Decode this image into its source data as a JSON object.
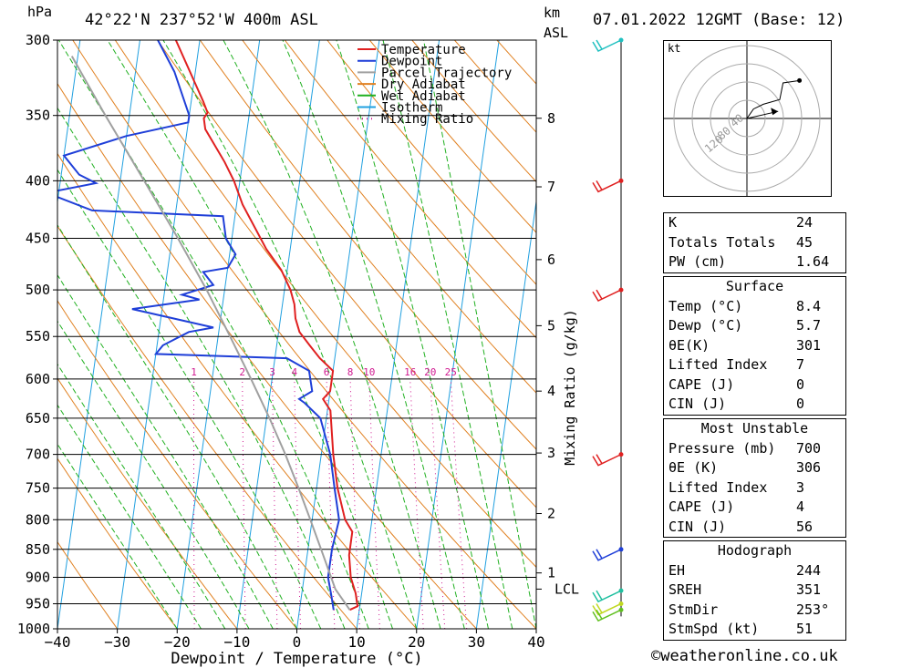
{
  "header": {
    "location": "42°22'N 237°52'W 400m ASL",
    "hpa_unit": "hPa",
    "km_unit": "km",
    "asl": "ASL",
    "datetime": "07.01.2022 12GMT (Base: 12)"
  },
  "chart_data": {
    "type": "line",
    "title": "42°22'N 237°52'W 400m ASL",
    "xlabel": "Dewpoint / Temperature (°C)",
    "ylabel": "hPa",
    "x_ticks": [
      -40,
      -30,
      -20,
      -10,
      0,
      10,
      20,
      30,
      40
    ],
    "xlim": [
      -40,
      40
    ],
    "ylim": [
      1000,
      300
    ],
    "y_scale": "log",
    "pressure_levels": [
      300,
      350,
      400,
      450,
      500,
      550,
      600,
      650,
      700,
      750,
      800,
      850,
      900,
      950,
      1000
    ],
    "km_ticks": [
      {
        "label": "8",
        "p": 352
      },
      {
        "label": "7",
        "p": 405
      },
      {
        "label": "6",
        "p": 470
      },
      {
        "label": "5",
        "p": 538
      },
      {
        "label": "4",
        "p": 615
      },
      {
        "label": "3",
        "p": 698
      },
      {
        "label": "2",
        "p": 790
      },
      {
        "label": "1",
        "p": 892
      },
      {
        "label": "LCL",
        "p": 922
      }
    ],
    "mixing_ratio_axis_label": "Mixing Ratio (g/kg)",
    "mixing_ratio_labels": [
      "1",
      "2",
      "3",
      "4",
      "6",
      "8",
      "10",
      "16",
      "20",
      "25"
    ],
    "legend": {
      "placement": "top-right",
      "entries": [
        {
          "name": "Temperature",
          "color": "#e02020"
        },
        {
          "name": "Dewpoint",
          "color": "#1f3fd8"
        },
        {
          "name": "Parcel Trajectory",
          "color": "#a0a0a0"
        },
        {
          "name": "Dry Adiabat",
          "color": "#e08020"
        },
        {
          "name": "Wet Adiabat",
          "color": "#20b020"
        },
        {
          "name": "Isotherm",
          "color": "#20a0e0"
        },
        {
          "name": "Mixing Ratio",
          "color": "#d01890"
        }
      ]
    },
    "series": [
      {
        "name": "Temperature",
        "color": "#e02020",
        "points": [
          {
            "p": 300,
            "t": -34
          },
          {
            "p": 340,
            "t": -28
          },
          {
            "p": 348,
            "t": -27
          },
          {
            "p": 352,
            "t": -27.5
          },
          {
            "p": 360,
            "t": -27
          },
          {
            "p": 385,
            "t": -23
          },
          {
            "p": 400,
            "t": -21
          },
          {
            "p": 420,
            "t": -19
          },
          {
            "p": 460,
            "t": -14
          },
          {
            "p": 480,
            "t": -11
          },
          {
            "p": 500,
            "t": -9
          },
          {
            "p": 515,
            "t": -8
          },
          {
            "p": 530,
            "t": -7.5
          },
          {
            "p": 545,
            "t": -6.5
          },
          {
            "p": 560,
            "t": -4.5
          },
          {
            "p": 575,
            "t": -2.5
          },
          {
            "p": 590,
            "t": 0
          },
          {
            "p": 600,
            "t": 0
          },
          {
            "p": 615,
            "t": 0
          },
          {
            "p": 625,
            "t": -1
          },
          {
            "p": 640,
            "t": 0.5
          },
          {
            "p": 700,
            "t": 2
          },
          {
            "p": 750,
            "t": 3.5
          },
          {
            "p": 800,
            "t": 5.5
          },
          {
            "p": 820,
            "t": 7
          },
          {
            "p": 860,
            "t": 7
          },
          {
            "p": 900,
            "t": 7.8
          },
          {
            "p": 930,
            "t": 9
          },
          {
            "p": 955,
            "t": 9.6
          },
          {
            "p": 962,
            "t": 8.4
          }
        ]
      },
      {
        "name": "Dewpoint",
        "color": "#1f3fd8",
        "points": [
          {
            "p": 300,
            "t": -37
          },
          {
            "p": 320,
            "t": -33.5
          },
          {
            "p": 350,
            "t": -30
          },
          {
            "p": 355,
            "t": -30
          },
          {
            "p": 365,
            "t": -40
          },
          {
            "p": 380,
            "t": -50
          },
          {
            "p": 395,
            "t": -47
          },
          {
            "p": 402,
            "t": -44
          },
          {
            "p": 410,
            "t": -52
          },
          {
            "p": 425,
            "t": -44
          },
          {
            "p": 430,
            "t": -22
          },
          {
            "p": 450,
            "t": -21
          },
          {
            "p": 465,
            "t": -19
          },
          {
            "p": 478,
            "t": -20
          },
          {
            "p": 482,
            "t": -24
          },
          {
            "p": 495,
            "t": -22
          },
          {
            "p": 505,
            "t": -27
          },
          {
            "p": 510,
            "t": -24
          },
          {
            "p": 520,
            "t": -35
          },
          {
            "p": 540,
            "t": -21
          },
          {
            "p": 545,
            "t": -25
          },
          {
            "p": 560,
            "t": -29
          },
          {
            "p": 570,
            "t": -30
          },
          {
            "p": 575,
            "t": -8
          },
          {
            "p": 590,
            "t": -4
          },
          {
            "p": 615,
            "t": -3
          },
          {
            "p": 625,
            "t": -5
          },
          {
            "p": 630,
            "t": -4
          },
          {
            "p": 650,
            "t": -1
          },
          {
            "p": 700,
            "t": 1.5
          },
          {
            "p": 750,
            "t": 3
          },
          {
            "p": 800,
            "t": 4.5
          },
          {
            "p": 850,
            "t": 4
          },
          {
            "p": 900,
            "t": 4
          },
          {
            "p": 935,
            "t": 5
          },
          {
            "p": 962,
            "t": 5.7
          }
        ]
      },
      {
        "name": "Parcel Trajectory",
        "color": "#a0a0a0",
        "points": [
          {
            "p": 962,
            "t": 8.4
          },
          {
            "p": 922,
            "t": 5.5
          },
          {
            "p": 850,
            "t": 2.2
          },
          {
            "p": 800,
            "t": -0.3
          },
          {
            "p": 750,
            "t": -3
          },
          {
            "p": 700,
            "t": -6
          },
          {
            "p": 650,
            "t": -9.5
          },
          {
            "p": 600,
            "t": -13.5
          },
          {
            "p": 550,
            "t": -18
          },
          {
            "p": 500,
            "t": -23
          },
          {
            "p": 450,
            "t": -29
          },
          {
            "p": 400,
            "t": -36
          },
          {
            "p": 350,
            "t": -44
          },
          {
            "p": 310,
            "t": -51
          }
        ]
      }
    ],
    "wind_barbs": [
      {
        "p": 300,
        "color": "#20c0c0"
      },
      {
        "p": 400,
        "color": "#e02020"
      },
      {
        "p": 500,
        "color": "#e02020"
      },
      {
        "p": 700,
        "color": "#e02020"
      },
      {
        "p": 850,
        "color": "#1f3fd8"
      },
      {
        "p": 925,
        "color": "#20c0a0"
      },
      {
        "p": 950,
        "color": "#c0d820"
      },
      {
        "p": 962,
        "color": "#60c020"
      }
    ]
  },
  "hodograph": {
    "unit_label": "kt",
    "ring_labels": [
      "40",
      "80",
      "120"
    ],
    "points_kt": [
      [
        0,
        0
      ],
      [
        4,
        8
      ],
      [
        10,
        12
      ],
      [
        20,
        16
      ],
      [
        22,
        30
      ],
      [
        32,
        32
      ]
    ],
    "storm_motion_kt": [
      19,
      6
    ]
  },
  "indices": [
    {
      "label": "K",
      "value": "24"
    },
    {
      "label": "Totals Totals",
      "value": "45"
    },
    {
      "label": "PW (cm)",
      "value": "1.64"
    }
  ],
  "surface": {
    "title": "Surface",
    "rows": [
      {
        "label": "Temp (°C)",
        "value": "8.4"
      },
      {
        "label": "Dewp (°C)",
        "value": "5.7"
      },
      {
        "label": "θE(K)",
        "value": "301"
      },
      {
        "label": "Lifted Index",
        "value": "7"
      },
      {
        "label": "CAPE (J)",
        "value": "0"
      },
      {
        "label": "CIN (J)",
        "value": "0"
      }
    ]
  },
  "most_unstable": {
    "title": "Most Unstable",
    "rows": [
      {
        "label": "Pressure (mb)",
        "value": "700"
      },
      {
        "label": "θE (K)",
        "value": "306"
      },
      {
        "label": "Lifted Index",
        "value": "3"
      },
      {
        "label": "CAPE (J)",
        "value": "4"
      },
      {
        "label": "CIN (J)",
        "value": "56"
      }
    ]
  },
  "hodograph_table": {
    "title": "Hodograph",
    "rows": [
      {
        "label": "EH",
        "value": "244"
      },
      {
        "label": "SREH",
        "value": "351"
      },
      {
        "label": "StmDir",
        "value": "253°"
      },
      {
        "label": "StmSpd (kt)",
        "value": "51"
      }
    ]
  },
  "footer": "©weatheronline.co.uk"
}
